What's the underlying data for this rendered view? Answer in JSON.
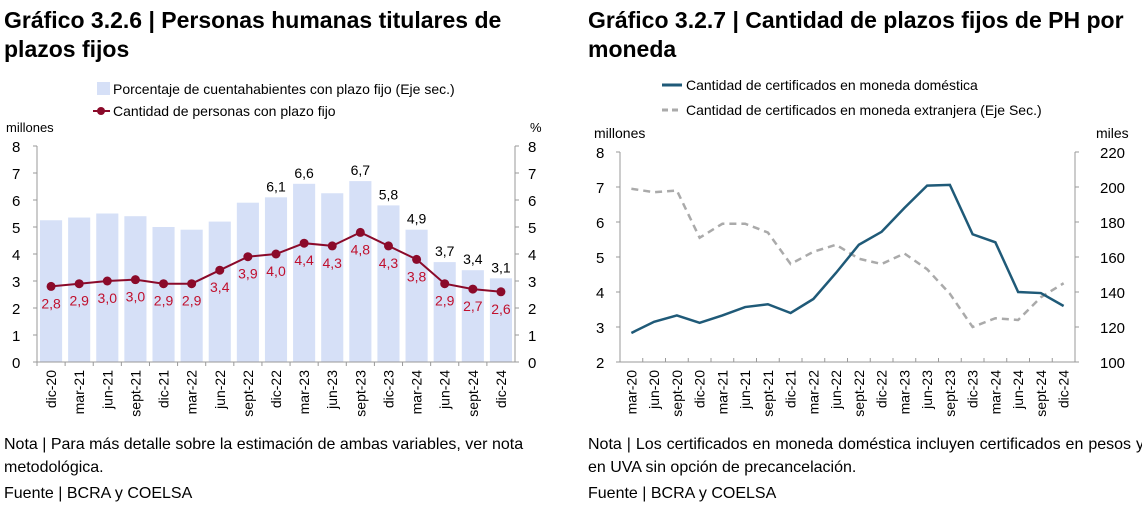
{
  "left": {
    "title": "Gráfico 3.2.6 | Personas humanas titulares de plazos fijos",
    "note": "Nota | Para más detalle sobre la estimación de ambas variables, ver nota metodológica.",
    "source": "Fuente | BCRA y COELSA"
  },
  "right": {
    "title": "Gráfico 3.2.7 | Cantidad de plazos fijos de PH por moneda",
    "note": "Nota | Los certificados en moneda doméstica incluyen certificados en pesos y en UVA sin opción de precancelación.",
    "source": "Fuente | BCRA y COELSA"
  },
  "chart_data": [
    {
      "type": "bar+line",
      "categories": [
        "dic-20",
        "mar-21",
        "jun-21",
        "sept-21",
        "dic-21",
        "mar-22",
        "jun-22",
        "sept-22",
        "dic-22",
        "mar-23",
        "jun-23",
        "sept-23",
        "dic-23",
        "mar-24",
        "jun-24",
        "sept-24",
        "dic-24"
      ],
      "ylabel_left": "millones",
      "ylabel_right": "%",
      "ylim": [
        0,
        8
      ],
      "ylim_right": [
        0,
        8
      ],
      "yticks": [
        "0",
        "1",
        "2",
        "3",
        "4",
        "5",
        "6",
        "7",
        "8"
      ],
      "series": [
        {
          "name": "Porcentaje de cuentahabientes con plazo fijo (Eje sec.)",
          "type": "bar",
          "axis": "right",
          "color": "#d6e0f7",
          "values": [
            5.25,
            5.35,
            5.5,
            5.4,
            5.0,
            4.9,
            5.2,
            5.9,
            6.1,
            6.6,
            6.25,
            6.7,
            5.8,
            4.9,
            3.7,
            3.4,
            3.1
          ],
          "labels": [
            null,
            null,
            null,
            null,
            null,
            null,
            null,
            null,
            "6,1",
            "6,6",
            null,
            "6,7",
            "5,8",
            "4,9",
            "3,7",
            "3,4",
            "3,1"
          ]
        },
        {
          "name": "Cantidad de personas con plazo fijo",
          "type": "line",
          "axis": "left",
          "color": "#8b0a2a",
          "values": [
            2.8,
            2.9,
            3.0,
            3.05,
            2.9,
            2.9,
            3.4,
            3.9,
            4.0,
            4.4,
            4.3,
            4.8,
            4.3,
            3.8,
            2.9,
            2.7,
            2.6
          ],
          "labels": [
            "2,8",
            "2,9",
            "3,0",
            "3,0",
            "2,9",
            "2,9",
            "3,4",
            "3,9",
            "4,0",
            "4,4",
            "4,3",
            "4,8",
            "4,3",
            "3,8",
            "2,9",
            "2,7",
            "2,6"
          ]
        }
      ],
      "legend": "top"
    },
    {
      "type": "line",
      "categories": [
        "mar-20",
        "jun-20",
        "sept-20",
        "dic-20",
        "mar-21",
        "jun-21",
        "sept-21",
        "dic-21",
        "mar-22",
        "jun-22",
        "sept-22",
        "dic-22",
        "mar-23",
        "jun-23",
        "sept-23",
        "dic-23",
        "mar-24",
        "jun-24",
        "sept-24",
        "dic-24"
      ],
      "ylabel_left": "millones",
      "ylabel_right": "miles",
      "ylim": [
        2,
        8
      ],
      "ylim_right": [
        100,
        220
      ],
      "yticks": [
        "2",
        "3",
        "4",
        "5",
        "6",
        "7",
        "8"
      ],
      "yticks_right": [
        "100",
        "120",
        "140",
        "160",
        "180",
        "200",
        "220"
      ],
      "series": [
        {
          "name": "Cantidad de certificados en moneda doméstica",
          "axis": "left",
          "color": "#1f5a78",
          "dash": false,
          "values": [
            2.83,
            3.15,
            3.33,
            3.12,
            3.33,
            3.57,
            3.65,
            3.4,
            3.8,
            4.55,
            5.35,
            5.72,
            6.4,
            7.04,
            7.06,
            5.65,
            5.42,
            4.0,
            3.97,
            3.6
          ]
        },
        {
          "name": "Cantidad de certificados en moneda extranjera (Eje Sec.)",
          "axis": "right",
          "color": "#aaaaaa",
          "dash": true,
          "values": [
            199,
            197,
            198,
            171,
            179,
            179,
            174,
            156,
            163,
            167,
            159,
            156,
            162,
            153,
            139,
            120,
            125,
            124,
            137,
            145
          ]
        }
      ],
      "legend": "top"
    }
  ]
}
